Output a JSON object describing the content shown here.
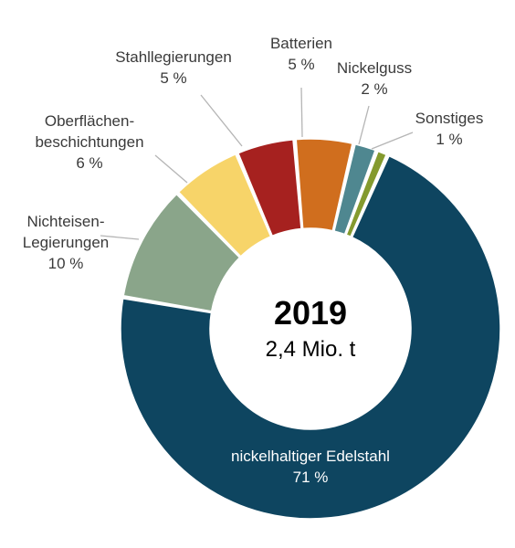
{
  "chart_data": {
    "type": "pie",
    "donut": true,
    "center_title": "2019",
    "center_subtitle": "2,4 Mio. t",
    "slices": [
      {
        "label": "nickelhaltiger Edelstahl",
        "label_lines": [
          "nickelhaltiger Edelstahl"
        ],
        "pct_label": "71 %",
        "value": 71,
        "color": "#0e4560"
      },
      {
        "label": "Nichteisen-Legierungen",
        "label_lines": [
          "Nichteisen-",
          "Legierungen"
        ],
        "pct_label": "10 %",
        "value": 10,
        "color": "#8aa58a"
      },
      {
        "label": "Oberflächenbeschichtungen",
        "label_lines": [
          "Oberflächen-",
          "beschichtungen"
        ],
        "pct_label": "6 %",
        "value": 6,
        "color": "#f7d469"
      },
      {
        "label": "Stahllegierungen",
        "label_lines": [
          "Stahllegierungen"
        ],
        "pct_label": "5 %",
        "value": 5,
        "color": "#a6211f"
      },
      {
        "label": "Batterien",
        "label_lines": [
          "Batterien"
        ],
        "pct_label": "5 %",
        "value": 5,
        "color": "#d06e1e"
      },
      {
        "label": "Nickelguss",
        "label_lines": [
          "Nickelguss"
        ],
        "pct_label": "2 %",
        "value": 2,
        "color": "#4f8790"
      },
      {
        "label": "Sonstiges",
        "label_lines": [
          "Sonstiges"
        ],
        "pct_label": "1 %",
        "value": 1,
        "color": "#849a2e"
      }
    ]
  }
}
